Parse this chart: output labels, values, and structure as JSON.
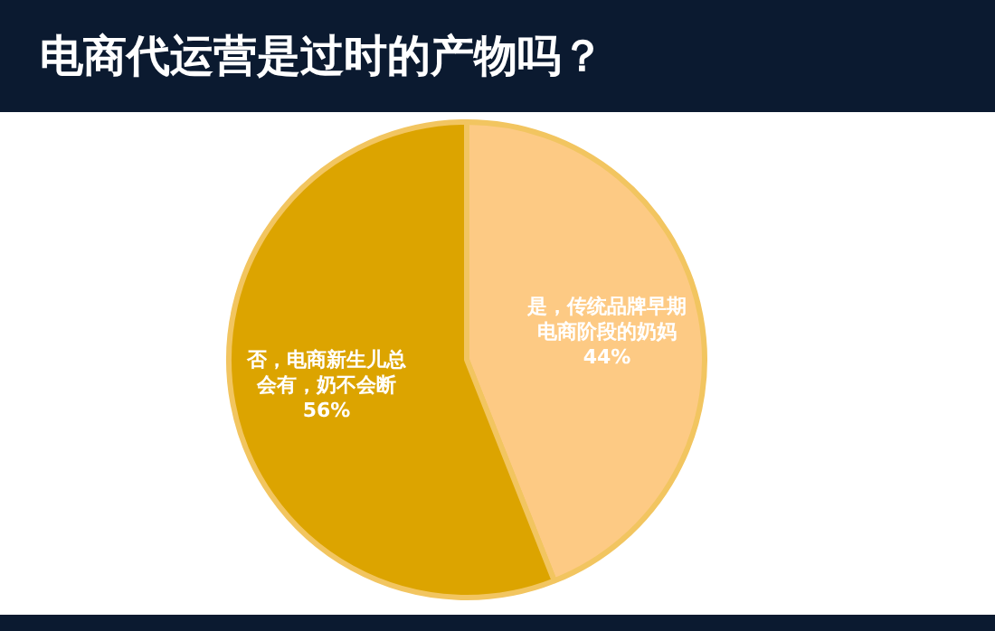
{
  "chart_data": {
    "type": "pie",
    "title": "电商代运营是过时的产物吗？",
    "categories": [
      "是，传统品牌早期电商阶段的奶妈",
      "否，电商新生儿总会有，奶不会断"
    ],
    "values": [
      44,
      56
    ],
    "colors": [
      "#fdca84",
      "#dca400"
    ],
    "value_labels": [
      "44%",
      "56%"
    ],
    "legend": false
  }
}
